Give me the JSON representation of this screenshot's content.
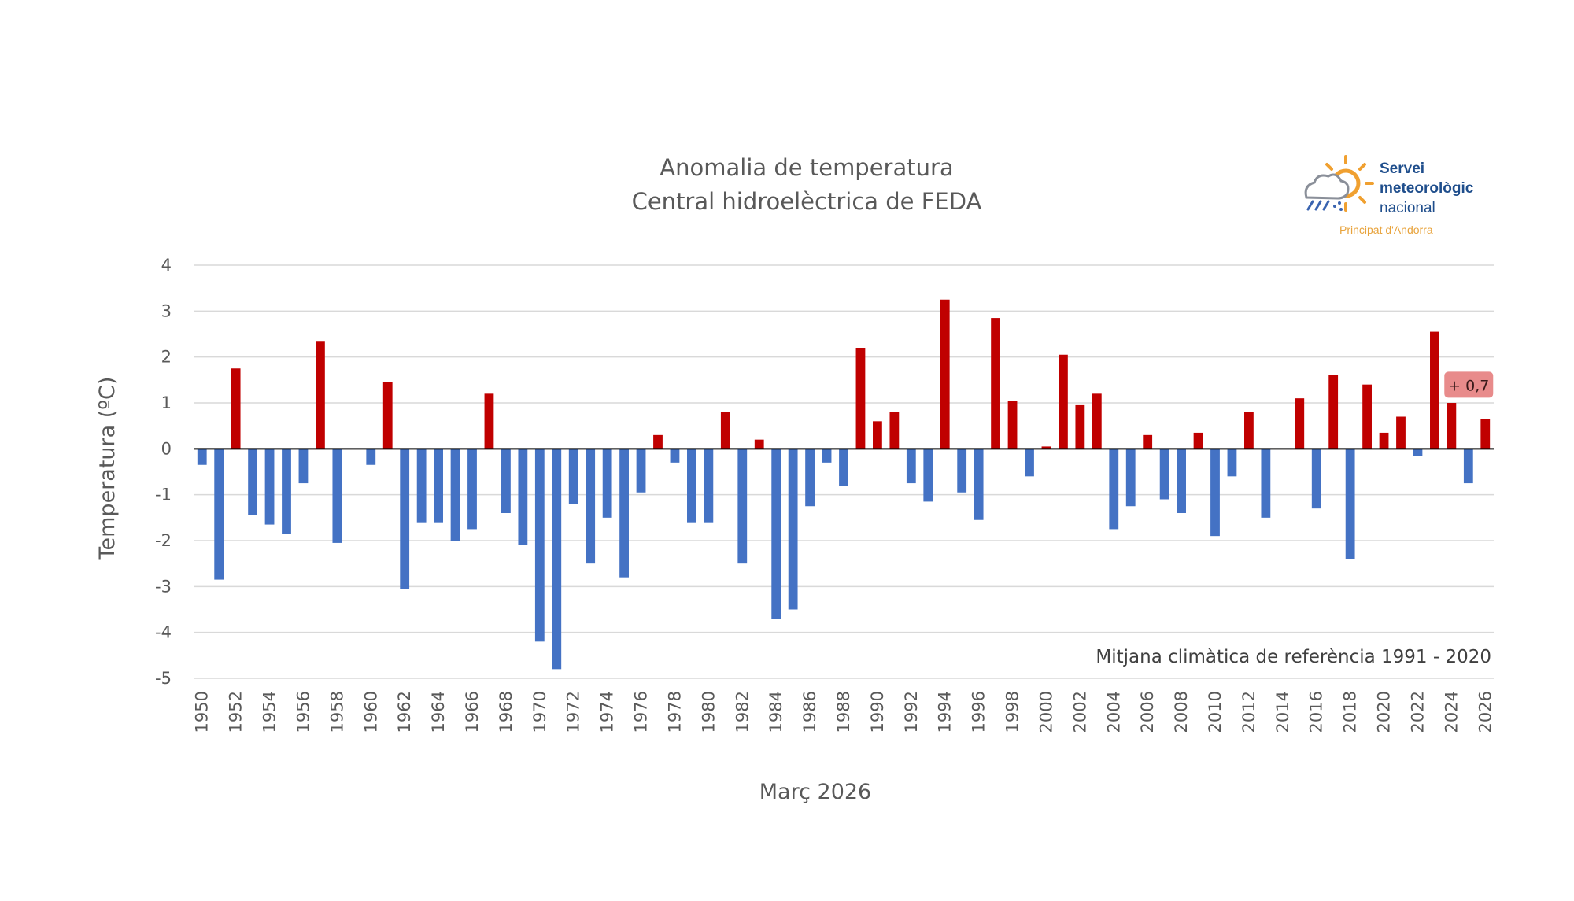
{
  "chart_data": {
    "type": "bar",
    "title": "Anomalia de temperatura",
    "subtitle": "Central hidroelèctrica de FEDA",
    "xlabel": "Març 2026",
    "ylabel": "Temperatura (ºC)",
    "ylim": [
      -5,
      4
    ],
    "y_ticks": [
      "4",
      "3",
      "2",
      "1",
      "0",
      "-1",
      "-2",
      "-3",
      "-4",
      "-5"
    ],
    "grid": true,
    "annotation": "Mitjana climàtica de referència 1991 - 2020",
    "last_value_label": "+ 0,7",
    "colors": {
      "positive": "#c00000",
      "negative": "#4472c4",
      "grid": "#d9d9d9",
      "badge": "#e88b8b"
    },
    "categories": [
      1950,
      1951,
      1952,
      1953,
      1954,
      1955,
      1956,
      1957,
      1958,
      1959,
      1960,
      1961,
      1962,
      1963,
      1964,
      1965,
      1966,
      1967,
      1968,
      1969,
      1970,
      1971,
      1972,
      1973,
      1974,
      1975,
      1976,
      1977,
      1978,
      1979,
      1980,
      1981,
      1982,
      1983,
      1984,
      1985,
      1986,
      1987,
      1988,
      1989,
      1990,
      1991,
      1992,
      1993,
      1994,
      1995,
      1996,
      1997,
      1998,
      1999,
      2000,
      2001,
      2002,
      2003,
      2004,
      2005,
      2006,
      2007,
      2008,
      2009,
      2010,
      2011,
      2012,
      2013,
      2014,
      2015,
      2016,
      2017,
      2018,
      2019,
      2020,
      2021,
      2022,
      2023,
      2024,
      2025,
      2026
    ],
    "values": [
      -0.35,
      -2.85,
      1.75,
      -1.45,
      -1.65,
      -1.85,
      -0.75,
      2.35,
      -2.05,
      0,
      -0.35,
      1.45,
      -3.05,
      -1.6,
      -1.6,
      -2.0,
      -1.75,
      1.2,
      -1.4,
      -2.1,
      -4.2,
      -4.8,
      -1.2,
      -2.5,
      -1.5,
      -2.8,
      -0.95,
      0.3,
      -0.3,
      -1.6,
      -1.6,
      0.8,
      -2.5,
      0.2,
      -3.7,
      -3.5,
      -1.25,
      -0.3,
      -0.8,
      2.2,
      0.6,
      0.8,
      -0.75,
      -1.15,
      3.25,
      -0.95,
      -1.55,
      2.85,
      1.05,
      -0.6,
      0.05,
      2.05,
      0.95,
      1.2,
      -1.75,
      -1.25,
      0.3,
      -1.1,
      -1.4,
      0.35,
      -1.9,
      -0.6,
      0.8,
      -1.5,
      0,
      1.1,
      -1.3,
      1.6,
      -2.4,
      1.4,
      0.35,
      0.7,
      -0.15,
      2.55,
      1.0,
      -0.75,
      0.65
    ],
    "x_tick_labels": [
      "1950",
      "1952",
      "1954",
      "1956",
      "1958",
      "1960",
      "1962",
      "1964",
      "1966",
      "1968",
      "1970",
      "1972",
      "1974",
      "1976",
      "1978",
      "1980",
      "1982",
      "1984",
      "1986",
      "1988",
      "1990",
      "1992",
      "1994",
      "1996",
      "1998",
      "2000",
      "2002",
      "2004",
      "2006",
      "2008",
      "2010",
      "2012",
      "2014",
      "2016",
      "2018",
      "2020",
      "2022",
      "2024",
      "2026"
    ]
  },
  "logo": {
    "line1": "Servei",
    "line2": "meteorològic",
    "line3": "nacional",
    "sub": "Principat d'Andorra"
  }
}
